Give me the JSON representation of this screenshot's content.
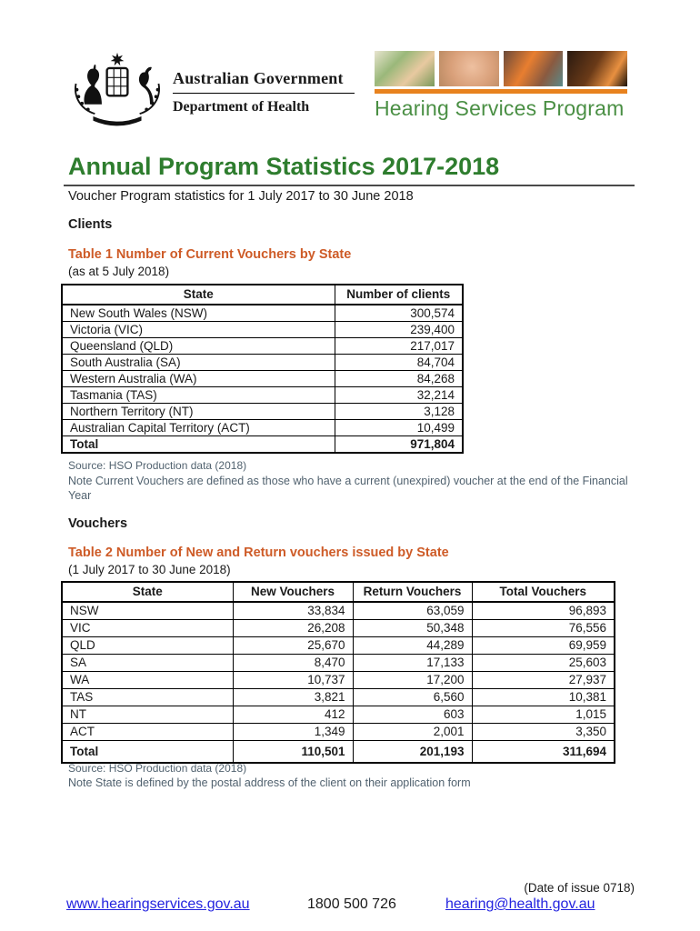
{
  "colors": {
    "title_green": "#2E7D2E",
    "hsp_green": "#4A8F44",
    "caption_orange": "#CE5B27",
    "bar_orange": "#E8821E",
    "note_slate": "#51626F",
    "link_blue": "#2323DF"
  },
  "header": {
    "gov_logo": {
      "line1": "Australian Government",
      "line2": "Department of Health"
    },
    "hsp_logo": {
      "title": "Hearing Services Program"
    }
  },
  "title": "Annual Program Statistics 2017-2018",
  "subtitle": "Voucher Program statistics for 1 July 2017 to 30 June 2018",
  "sections": {
    "clients": "Clients",
    "vouchers": "Vouchers"
  },
  "table1": {
    "caption": "Table 1 Number of Current Vouchers by State",
    "subcaption": "(as at 5 July 2018)",
    "columns": [
      "State",
      "Number of clients"
    ],
    "rows": [
      [
        "New South Wales (NSW)",
        "300,574"
      ],
      [
        "Victoria (VIC)",
        "239,400"
      ],
      [
        "Queensland (QLD)",
        "217,017"
      ],
      [
        "South Australia (SA)",
        "84,704"
      ],
      [
        "Western Australia (WA)",
        "84,268"
      ],
      [
        "Tasmania (TAS)",
        "32,214"
      ],
      [
        "Northern Territory (NT)",
        "3,128"
      ],
      [
        "Australian Capital Territory (ACT)",
        "10,499"
      ]
    ],
    "total": [
      "Total",
      "971,804"
    ],
    "source": "Source: HSO Production data (2018)",
    "note": "Note Current Vouchers are defined as those who have a current (unexpired) voucher at the end of the Financial Year"
  },
  "table2": {
    "caption": "Table 2 Number of New and Return vouchers issued by State",
    "subcaption": "(1 July 2017 to 30 June 2018)",
    "columns": [
      "State",
      "New Vouchers",
      "Return Vouchers",
      "Total Vouchers"
    ],
    "rows": [
      [
        "NSW",
        "33,834",
        "63,059",
        "96,893"
      ],
      [
        "VIC",
        "26,208",
        "50,348",
        "76,556"
      ],
      [
        "QLD",
        "25,670",
        "44,289",
        "69,959"
      ],
      [
        "SA",
        "8,470",
        "17,133",
        "25,603"
      ],
      [
        "WA",
        "10,737",
        "17,200",
        "27,937"
      ],
      [
        "TAS",
        "3,821",
        "6,560",
        "10,381"
      ],
      [
        "NT",
        "412",
        "603",
        "1,015"
      ],
      [
        "ACT",
        "1,349",
        "2,001",
        "3,350"
      ]
    ],
    "total": [
      "Total",
      "110,501",
      "201,193",
      "311,694"
    ],
    "source": "Source: HSO Production data (2018)",
    "note": "Note State is defined by the postal address of the client on their application form"
  },
  "footer": {
    "issue_date": "(Date of issue 0718)",
    "website": "www.hearingservices.gov.au",
    "phone": "1800 500 726",
    "email": "hearing@health.gov.au"
  }
}
